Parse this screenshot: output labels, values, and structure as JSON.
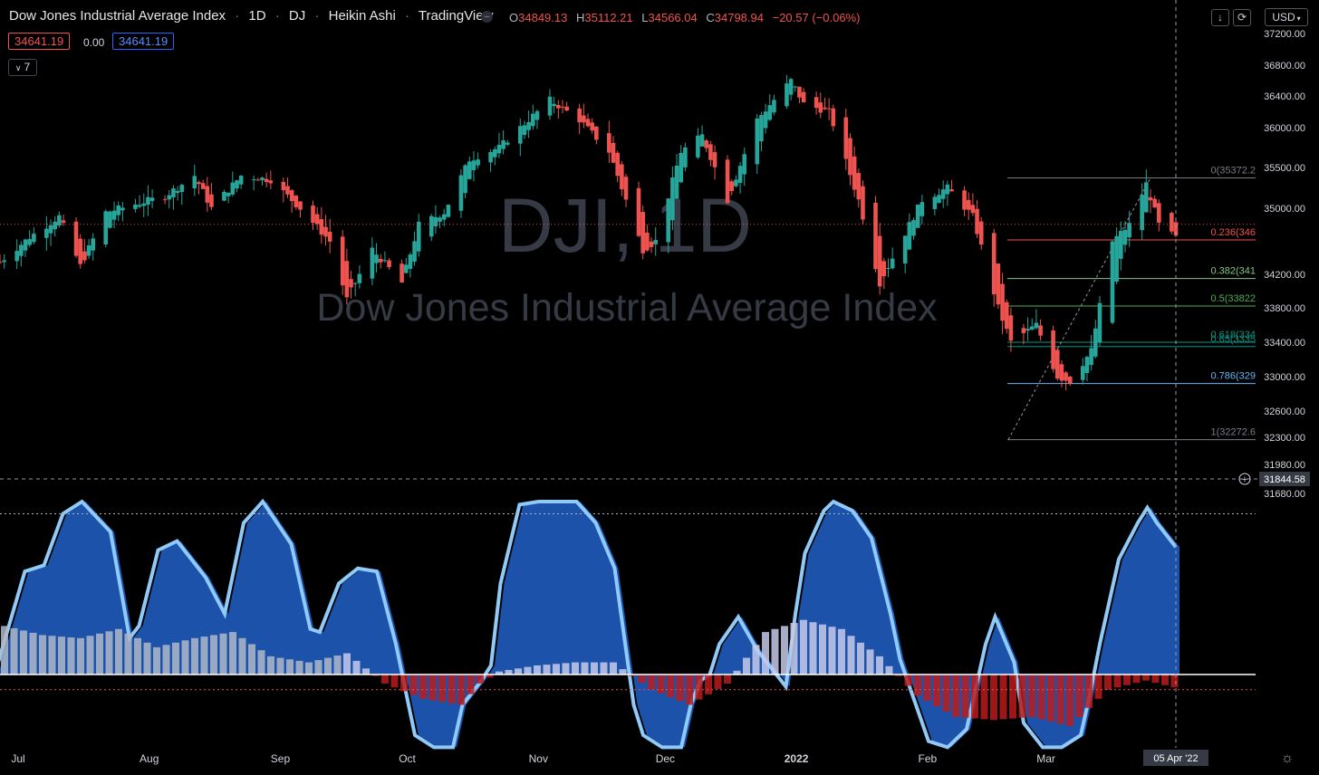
{
  "header": {
    "symbol_name": "Dow Jones Industrial Average Index",
    "interval": "1D",
    "exchange": "DJ",
    "chart_style": "Heikin Ashi",
    "source": "TradingView",
    "ohlc": {
      "o_label": "O",
      "o": "34849.13",
      "h_label": "H",
      "h": "35112.21",
      "l_label": "L",
      "l": "34566.04",
      "c_label": "C",
      "c": "34798.94",
      "change": "−20.57 (−0.06%)"
    },
    "sell_price": "34641.19",
    "spread": "0.00",
    "buy_price": "34641.19",
    "indicators_toggle": "7",
    "currency": "USD"
  },
  "watermark": {
    "line1": "DJI, 1D",
    "line2": "Dow Jones Industrial Average Index"
  },
  "colors": {
    "up": "#26a69a",
    "down": "#ef5350",
    "background": "#000000",
    "price_line": "#ef5350",
    "wave_dark": "#1e56b3",
    "wave_light": "#90caf9"
  },
  "chart_data": [
    {
      "type": "candlestick",
      "style": "Heikin Ashi",
      "title": "Dow Jones Industrial Average Index",
      "xlabel": "",
      "ylabel": "",
      "x_ticks": [
        "Jul",
        "Aug",
        "Sep",
        "Oct",
        "Nov",
        "Dec",
        "2022",
        "Feb",
        "Mar"
      ],
      "y_ticks": [
        37200,
        36800,
        36400,
        36000,
        35500,
        35000,
        34200,
        33800,
        33400,
        33000,
        32600,
        32300,
        31980,
        31680
      ],
      "ylim": [
        31680,
        37200
      ],
      "close_series_approx": [
        [
          "2021-07-01",
          34350
        ],
        [
          "2021-07-08",
          34650
        ],
        [
          "2021-07-15",
          34900
        ],
        [
          "2021-07-20",
          34300
        ],
        [
          "2021-07-26",
          34950
        ],
        [
          "2021-08-02",
          35050
        ],
        [
          "2021-08-09",
          35150
        ],
        [
          "2021-08-16",
          35400
        ],
        [
          "2021-08-20",
          35000
        ],
        [
          "2021-08-27",
          35400
        ],
        [
          "2021-09-03",
          35350
        ],
        [
          "2021-09-10",
          35000
        ],
        [
          "2021-09-17",
          34600
        ],
        [
          "2021-09-21",
          33900
        ],
        [
          "2021-09-27",
          34500
        ],
        [
          "2021-10-04",
          34100
        ],
        [
          "2021-10-08",
          34800
        ],
        [
          "2021-10-14",
          34950
        ],
        [
          "2021-10-20",
          35600
        ],
        [
          "2021-10-27",
          35750
        ],
        [
          "2021-11-03",
          36100
        ],
        [
          "2021-11-08",
          36350
        ],
        [
          "2021-11-15",
          36100
        ],
        [
          "2021-11-22",
          35700
        ],
        [
          "2021-11-30",
          34500
        ],
        [
          "2021-12-03",
          34600
        ],
        [
          "2021-12-09",
          35700
        ],
        [
          "2021-12-14",
          35900
        ],
        [
          "2021-12-20",
          35100
        ],
        [
          "2021-12-27",
          36100
        ],
        [
          "2022-01-04",
          36600
        ],
        [
          "2022-01-07",
          36300
        ],
        [
          "2022-01-13",
          36200
        ],
        [
          "2022-01-20",
          35100
        ],
        [
          "2022-01-25",
          34100
        ],
        [
          "2022-01-31",
          34700
        ],
        [
          "2022-02-04",
          35100
        ],
        [
          "2022-02-10",
          35250
        ],
        [
          "2022-02-16",
          34900
        ],
        [
          "2022-02-22",
          33800
        ],
        [
          "2022-02-25",
          33400
        ],
        [
          "2022-03-03",
          33600
        ],
        [
          "2022-03-08",
          33000
        ],
        [
          "2022-03-11",
          32950
        ],
        [
          "2022-03-16",
          33300
        ],
        [
          "2022-03-21",
          34600
        ],
        [
          "2022-03-25",
          34800
        ],
        [
          "2022-03-29",
          35300
        ],
        [
          "2022-04-01",
          34800
        ],
        [
          "2022-04-05",
          34641
        ]
      ],
      "last_price": 34641.19,
      "last_close": 34798.94,
      "crosshair_price": "31844.58",
      "crosshair_date": "05 Apr '22",
      "fibonacci": [
        {
          "label": "0(35372.2",
          "value": 35372.2
        },
        {
          "label": "0.236(346",
          "value": 34617
        },
        {
          "label": "0.382(341",
          "value": 34150
        },
        {
          "label": "0.5(33822",
          "value": 33822
        },
        {
          "label": "0.618(334",
          "value": 33400
        },
        {
          "label": "0.65(3335",
          "value": 33350
        },
        {
          "label": "0.786(329",
          "value": 32920
        },
        {
          "label": "1(32272.6",
          "value": 32272.6
        }
      ]
    },
    {
      "type": "area",
      "title": "",
      "y_ticks": [
        50,
        40,
        30,
        20,
        10,
        0,
        -10,
        -20
      ],
      "ylim": [
        -24,
        57
      ],
      "wave_series_approx": [
        [
          0,
          2
        ],
        [
          3,
          34
        ],
        [
          5,
          36
        ],
        [
          7,
          53
        ],
        [
          9,
          57
        ],
        [
          12,
          47
        ],
        [
          14,
          12
        ],
        [
          15,
          16
        ],
        [
          17,
          41
        ],
        [
          19,
          44
        ],
        [
          22,
          32
        ],
        [
          24,
          20
        ],
        [
          26,
          50
        ],
        [
          28,
          57
        ],
        [
          31,
          43
        ],
        [
          33,
          15
        ],
        [
          34,
          14
        ],
        [
          36,
          30
        ],
        [
          38,
          35
        ],
        [
          40,
          34
        ],
        [
          42,
          10
        ],
        [
          44,
          -20
        ],
        [
          46,
          -24
        ],
        [
          48,
          -24
        ],
        [
          49,
          -10
        ],
        [
          51,
          -2
        ],
        [
          52,
          3
        ],
        [
          53,
          30
        ],
        [
          55,
          56
        ],
        [
          57,
          57
        ],
        [
          61,
          57
        ],
        [
          63,
          50
        ],
        [
          65,
          35
        ],
        [
          67,
          -10
        ],
        [
          68,
          -20
        ],
        [
          70,
          -24
        ],
        [
          72,
          -24
        ],
        [
          73,
          -10
        ],
        [
          74,
          -2
        ],
        [
          75,
          0
        ],
        [
          76,
          10
        ],
        [
          78,
          19
        ],
        [
          80,
          8
        ],
        [
          82,
          0
        ],
        [
          83,
          -4
        ],
        [
          84,
          20
        ],
        [
          85,
          40
        ],
        [
          87,
          54
        ],
        [
          88,
          57
        ],
        [
          90,
          54
        ],
        [
          92,
          45
        ],
        [
          94,
          20
        ],
        [
          95,
          5
        ],
        [
          96,
          -4
        ],
        [
          98,
          -22
        ],
        [
          100,
          -24
        ],
        [
          102,
          -18
        ],
        [
          103,
          -4
        ],
        [
          104,
          10
        ],
        [
          105,
          19
        ],
        [
          107,
          4
        ],
        [
          108,
          -16
        ],
        [
          110,
          -24
        ],
        [
          112,
          -24
        ],
        [
          114,
          -20
        ],
        [
          115,
          -6
        ],
        [
          116,
          10
        ],
        [
          118,
          38
        ],
        [
          120,
          50
        ],
        [
          121,
          55
        ],
        [
          122,
          50
        ],
        [
          124,
          42
        ]
      ],
      "histogram_series_approx": [
        [
          0,
          16
        ],
        [
          4,
          13
        ],
        [
          8,
          12
        ],
        [
          12,
          15
        ],
        [
          16,
          9
        ],
        [
          20,
          12
        ],
        [
          24,
          14
        ],
        [
          28,
          6
        ],
        [
          32,
          4
        ],
        [
          36,
          7
        ],
        [
          40,
          -3
        ],
        [
          44,
          -8
        ],
        [
          48,
          -10
        ],
        [
          50,
          -3
        ],
        [
          52,
          1
        ],
        [
          56,
          3
        ],
        [
          60,
          4
        ],
        [
          64,
          4
        ],
        [
          68,
          -5
        ],
        [
          72,
          -10
        ],
        [
          76,
          -3
        ],
        [
          80,
          14
        ],
        [
          84,
          18
        ],
        [
          88,
          15
        ],
        [
          92,
          6
        ],
        [
          96,
          -7
        ],
        [
          100,
          -14
        ],
        [
          104,
          -15
        ],
        [
          108,
          -14
        ],
        [
          112,
          -17
        ],
        [
          116,
          -5
        ],
        [
          120,
          -2
        ],
        [
          124,
          -5
        ]
      ]
    }
  ]
}
